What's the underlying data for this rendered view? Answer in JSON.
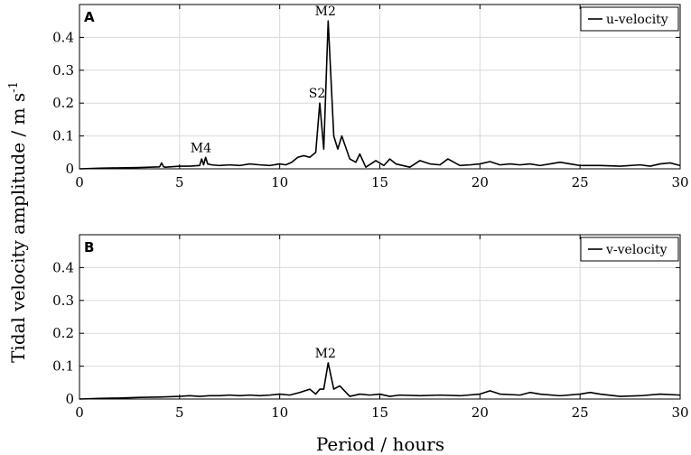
{
  "chart_data": [
    {
      "type": "line",
      "panel_label": "A",
      "legend": "u-velocity",
      "legend_position": "top-right",
      "xlim": [
        0,
        30
      ],
      "ylim": [
        0,
        0.5
      ],
      "x_ticks": [
        "0",
        "5",
        "10",
        "15",
        "20",
        "25",
        "30"
      ],
      "y_ticks": [
        "0",
        "0.1",
        "0.2",
        "0.3",
        "0.4"
      ],
      "grid": true,
      "annotations": [
        {
          "text": "M4",
          "x": 6.2,
          "y": 0.035
        },
        {
          "text": "S2",
          "x": 12.0,
          "y": 0.2
        },
        {
          "text": "M2",
          "x": 12.42,
          "y": 0.45
        }
      ],
      "series": [
        {
          "x": [
            0,
            1,
            2,
            3,
            3.5,
            4,
            4.1,
            4.2,
            4.3,
            5,
            5.5,
            6,
            6.1,
            6.2,
            6.3,
            6.4,
            6.6,
            7,
            7.5,
            8,
            8.5,
            9,
            9.5,
            10,
            10.3,
            10.6,
            10.9,
            11.2,
            11.5,
            11.8,
            12.0,
            12.2,
            12.42,
            12.7,
            12.9,
            13.1,
            13.5,
            13.8,
            14.0,
            14.3,
            14.8,
            15.2,
            15.5,
            15.8,
            16.5,
            17.0,
            17.5,
            18.0,
            18.4,
            19.0,
            19.5,
            20.0,
            20.5,
            21.0,
            21.5,
            22.0,
            22.5,
            23.0,
            23.5,
            24.0,
            24.5,
            25.0,
            26.0,
            27.0,
            28.0,
            28.5,
            29.0,
            29.5,
            30.0
          ],
          "y": [
            0.0,
            0.002,
            0.003,
            0.004,
            0.005,
            0.006,
            0.018,
            0.006,
            0.005,
            0.008,
            0.008,
            0.01,
            0.03,
            0.012,
            0.035,
            0.015,
            0.012,
            0.01,
            0.012,
            0.01,
            0.015,
            0.012,
            0.01,
            0.015,
            0.012,
            0.02,
            0.035,
            0.04,
            0.035,
            0.05,
            0.2,
            0.06,
            0.45,
            0.1,
            0.06,
            0.1,
            0.03,
            0.02,
            0.045,
            0.005,
            0.025,
            0.01,
            0.03,
            0.015,
            0.005,
            0.025,
            0.015,
            0.012,
            0.03,
            0.01,
            0.012,
            0.015,
            0.022,
            0.012,
            0.015,
            0.012,
            0.015,
            0.01,
            0.015,
            0.02,
            0.015,
            0.01,
            0.01,
            0.008,
            0.012,
            0.008,
            0.015,
            0.018,
            0.01
          ]
        }
      ]
    },
    {
      "type": "line",
      "panel_label": "B",
      "legend": "v-velocity",
      "legend_position": "top-right",
      "xlim": [
        0,
        30
      ],
      "ylim": [
        0,
        0.5
      ],
      "x_ticks": [
        "0",
        "5",
        "10",
        "15",
        "20",
        "25",
        "30"
      ],
      "y_ticks": [
        "0",
        "0.1",
        "0.2",
        "0.3",
        "0.4"
      ],
      "grid": true,
      "annotations": [
        {
          "text": "M2",
          "x": 12.42,
          "y": 0.11
        }
      ],
      "series": [
        {
          "x": [
            0,
            1,
            2,
            3,
            4,
            5,
            5.5,
            6,
            6.5,
            7,
            7.5,
            8,
            8.5,
            9,
            9.5,
            10,
            10.5,
            11,
            11.5,
            11.8,
            12.0,
            12.2,
            12.42,
            12.7,
            13.0,
            13.5,
            14.0,
            14.5,
            15.0,
            15.5,
            16.0,
            17.0,
            18.0,
            19.0,
            20.0,
            20.5,
            21.0,
            22.0,
            22.5,
            23.0,
            24.0,
            25.0,
            25.5,
            26.0,
            27.0,
            28.0,
            29.0,
            30.0
          ],
          "y": [
            0.0,
            0.002,
            0.003,
            0.005,
            0.006,
            0.008,
            0.01,
            0.008,
            0.01,
            0.01,
            0.012,
            0.01,
            0.012,
            0.01,
            0.012,
            0.015,
            0.012,
            0.02,
            0.03,
            0.015,
            0.03,
            0.03,
            0.11,
            0.03,
            0.04,
            0.008,
            0.015,
            0.012,
            0.015,
            0.008,
            0.012,
            0.01,
            0.012,
            0.01,
            0.015,
            0.025,
            0.015,
            0.012,
            0.02,
            0.015,
            0.01,
            0.015,
            0.02,
            0.015,
            0.008,
            0.01,
            0.015,
            0.012
          ]
        }
      ]
    }
  ],
  "shared": {
    "ylabel_main": "Tidal velocity amplitude / m s",
    "ylabel_sup": "-1",
    "xlabel": "Period / hours"
  }
}
